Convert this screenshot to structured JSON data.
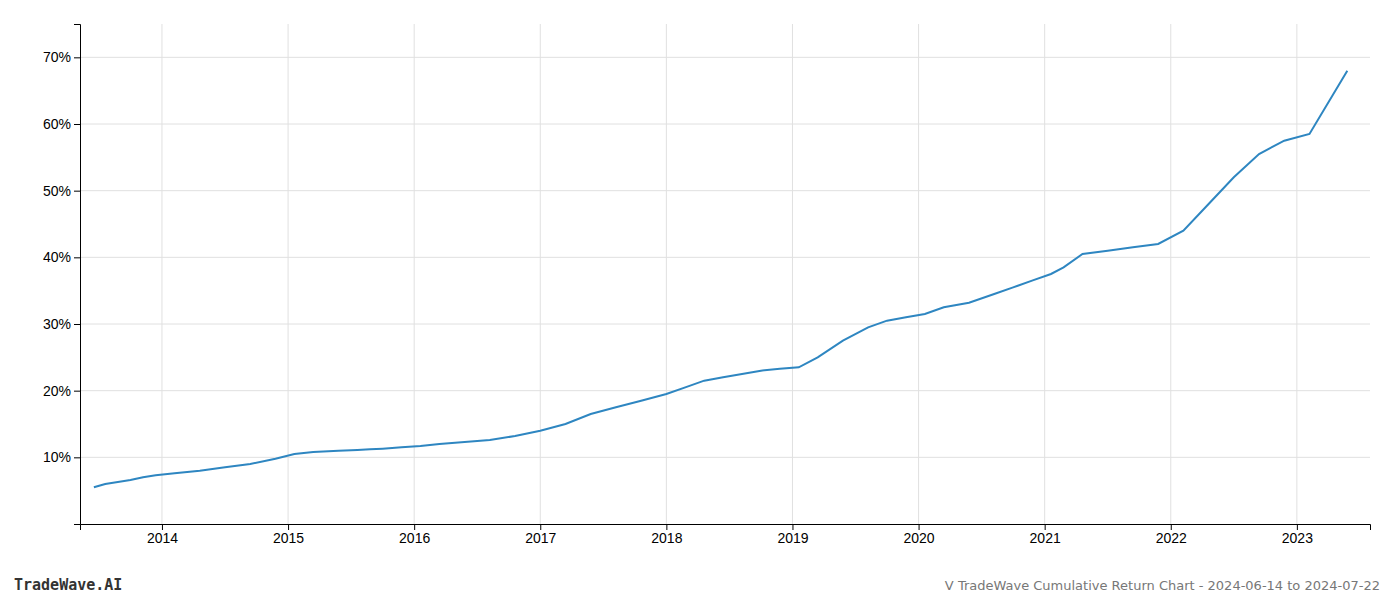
{
  "chart_data": {
    "type": "line",
    "title": "V TradeWave Cumulative Return Chart - 2024-06-14 to 2024-07-22",
    "annotations": [
      "TradeWave.AI"
    ],
    "x": [
      2013.46,
      2013.55,
      2013.65,
      2013.75,
      2013.85,
      2013.95,
      2014.1,
      2014.3,
      2014.5,
      2014.7,
      2014.9,
      2015.05,
      2015.2,
      2015.4,
      2015.55,
      2015.65,
      2015.75,
      2015.9,
      2016.05,
      2016.2,
      2016.4,
      2016.6,
      2016.8,
      2017.0,
      2017.2,
      2017.4,
      2017.6,
      2017.8,
      2018.0,
      2018.15,
      2018.3,
      2018.45,
      2018.6,
      2018.75,
      2018.9,
      2019.05,
      2019.2,
      2019.4,
      2019.6,
      2019.75,
      2019.9,
      2020.05,
      2020.2,
      2020.4,
      2020.6,
      2020.75,
      2020.9,
      2021.05,
      2021.15,
      2021.3,
      2021.5,
      2021.7,
      2021.9,
      2022.1,
      2022.3,
      2022.5,
      2022.7,
      2022.9,
      2023.1,
      2023.4
    ],
    "values": [
      5.5,
      6.0,
      6.3,
      6.6,
      7.0,
      7.3,
      7.6,
      8.0,
      8.5,
      9.0,
      9.8,
      10.5,
      10.8,
      11.0,
      11.1,
      11.2,
      11.3,
      11.5,
      11.7,
      12.0,
      12.3,
      12.6,
      13.2,
      14.0,
      15.0,
      16.5,
      17.5,
      18.5,
      19.5,
      20.5,
      21.5,
      22.0,
      22.5,
      23.0,
      23.3,
      23.5,
      25.0,
      27.5,
      29.5,
      30.5,
      31.0,
      31.5,
      32.5,
      33.2,
      34.5,
      35.5,
      36.5,
      37.5,
      38.5,
      40.5,
      41.0,
      41.5,
      42.0,
      44.0,
      48.0,
      52.0,
      55.5,
      57.5,
      58.5,
      68.0
    ],
    "color": "#2E86C1",
    "xlim": [
      2013.35,
      2023.58
    ],
    "xticks": [
      2014,
      2015,
      2016,
      2017,
      2018,
      2019,
      2020,
      2021,
      2022,
      2023
    ],
    "ylim": [
      0,
      75
    ],
    "yticks": [
      {
        "value": 10,
        "label": "10%"
      },
      {
        "value": 20,
        "label": "20%"
      },
      {
        "value": 30,
        "label": "30%"
      },
      {
        "value": 40,
        "label": "40%"
      },
      {
        "value": 50,
        "label": "50%"
      },
      {
        "value": 60,
        "label": "60%"
      },
      {
        "value": 70,
        "label": "70%"
      }
    ],
    "grid": true
  }
}
